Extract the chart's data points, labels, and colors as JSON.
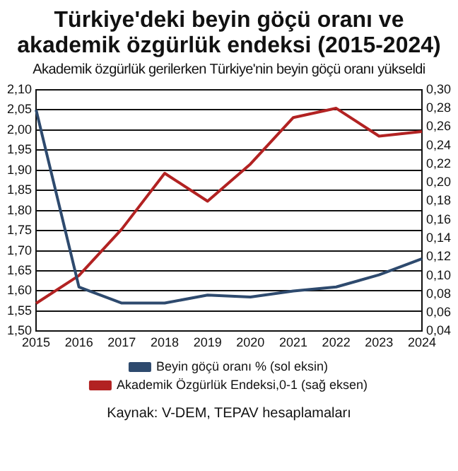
{
  "chart_data": {
    "type": "line",
    "title": "Türkiye'deki beyin göçü oranı ve akademik özgürlük endeksi (2015-2024)",
    "subtitle": "Akademik özgürlük gerilerken Türkiye'nin beyin göçü oranı yükseldi",
    "categories": [
      "2015",
      "2016",
      "2017",
      "2018",
      "2019",
      "2020",
      "2021",
      "2022",
      "2023",
      "2024"
    ],
    "series": [
      {
        "name": "Beyin göçü oranı % (sol eksin)",
        "color": "#2e4a6e",
        "values": [
          2.05,
          1.61,
          1.57,
          1.57,
          1.59,
          1.585,
          1.6,
          1.61,
          1.64,
          1.68
        ]
      },
      {
        "name": "Akademik Özgürlük Endeksi,0-1 (sağ eksen)",
        "color": "#b22222",
        "axis": "y2",
        "values": [
          0.07,
          0.1,
          0.15,
          0.21,
          0.18,
          0.22,
          0.27,
          0.28,
          0.25,
          0.255
        ]
      }
    ],
    "ylim": [
      1.5,
      2.1
    ],
    "yticks": [
      {
        "value": 1.5,
        "label": "1,50"
      },
      {
        "value": 1.55,
        "label": "1,55"
      },
      {
        "value": 1.6,
        "label": "1,60"
      },
      {
        "value": 1.65,
        "label": "1,65"
      },
      {
        "value": 1.7,
        "label": "1,70"
      },
      {
        "value": 1.75,
        "label": "1,75"
      },
      {
        "value": 1.8,
        "label": "1,80"
      },
      {
        "value": 1.85,
        "label": "1,85"
      },
      {
        "value": 1.9,
        "label": "1,90"
      },
      {
        "value": 1.95,
        "label": "1,95"
      },
      {
        "value": 2.0,
        "label": "2,00"
      },
      {
        "value": 2.05,
        "label": "2,05"
      },
      {
        "value": 2.1,
        "label": "2,10"
      }
    ],
    "y2lim": [
      0.04,
      0.3
    ],
    "y2ticks": [
      {
        "value": 0.04,
        "label": "0,04"
      },
      {
        "value": 0.06,
        "label": "0,06"
      },
      {
        "value": 0.08,
        "label": "0,08"
      },
      {
        "value": 0.1,
        "label": "0,10"
      },
      {
        "value": 0.12,
        "label": "0,12"
      },
      {
        "value": 0.14,
        "label": "0,14"
      },
      {
        "value": 0.16,
        "label": "0,16"
      },
      {
        "value": 0.18,
        "label": "0,18"
      },
      {
        "value": 0.2,
        "label": "0,20"
      },
      {
        "value": 0.22,
        "label": "0,22"
      },
      {
        "value": 0.24,
        "label": "0,24"
      },
      {
        "value": 0.26,
        "label": "0,26"
      },
      {
        "value": 0.28,
        "label": "0,28"
      },
      {
        "value": 0.3,
        "label": "0,30"
      }
    ],
    "grid": "y",
    "legend": "bottom",
    "marker": "none",
    "line_style": "solid",
    "annotations": [
      "Kaynak: V-DEM, TEPAV hesaplamaları"
    ]
  }
}
